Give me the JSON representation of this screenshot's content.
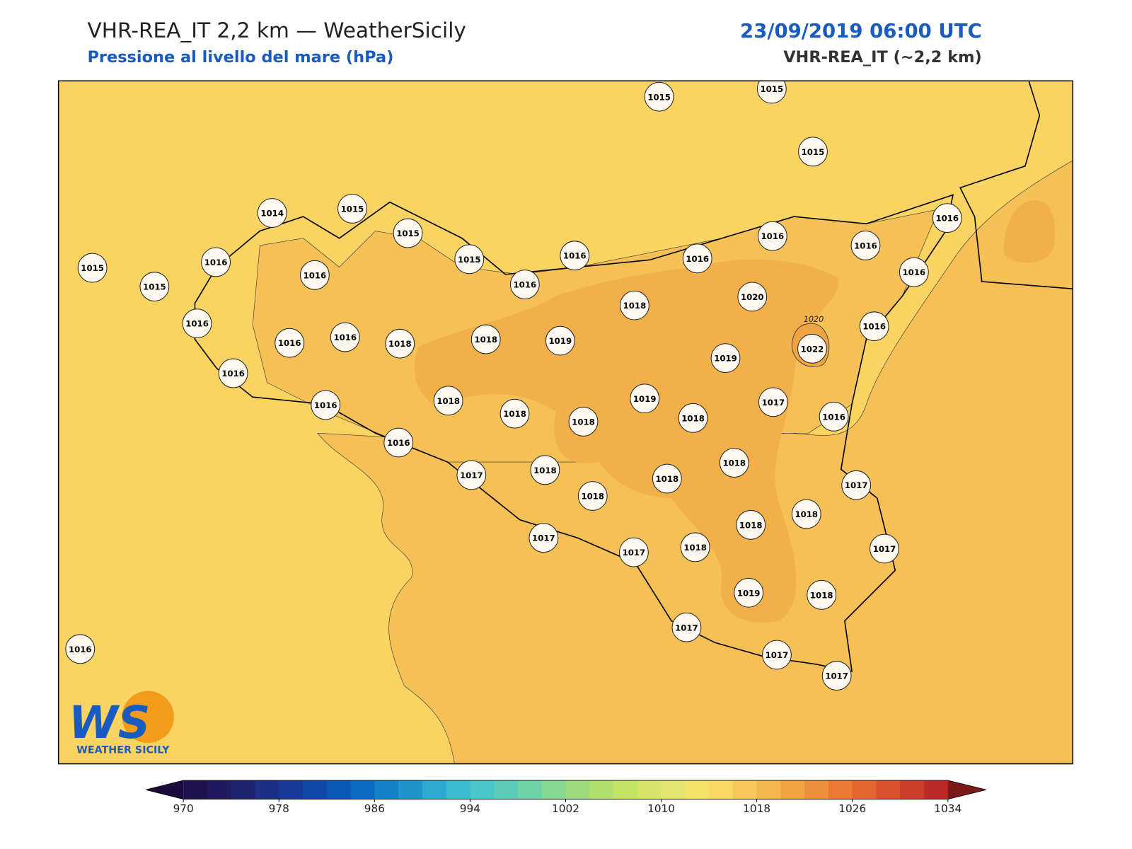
{
  "header": {
    "title": "VHR-REA_IT 2,2 km — WeatherSicily",
    "subtitle": "Pressione al livello del mare (hPa)",
    "date": "23/09/2019 06:00 UTC",
    "model": "VHR-REA_IT (~2,2 km)"
  },
  "map": {
    "stations": [
      1015,
      1015,
      1015,
      1014,
      1015,
      1015,
      1015,
      1016,
      1015,
      1016,
      1015,
      1016,
      1016,
      1016,
      1016,
      1016,
      1016,
      1016,
      1016,
      1016,
      1016,
      1018,
      1018,
      1019,
      1018,
      1020,
      1022,
      1019,
      1016,
      1016,
      1016,
      1018,
      1018,
      1018,
      1019,
      1018,
      1017,
      1016,
      1016,
      1017,
      1018,
      1018,
      1018,
      1018,
      1017,
      1018,
      1018,
      1017,
      1017,
      1018,
      1017,
      1019,
      1018,
      1017,
      1017,
      1017,
      1016
    ],
    "contour_label": "1020",
    "colors": {
      "sea": "#fad463",
      "mid": "#f5c156",
      "high": "#f2b04a",
      "peak": "#eea443"
    }
  },
  "logo": {
    "mark": "WS",
    "text": "WEATHER SICILY"
  },
  "colorbar": {
    "min": 970,
    "max": 1034,
    "step": 2,
    "ticks": [
      970,
      978,
      986,
      994,
      1002,
      1010,
      1018,
      1026,
      1034
    ],
    "colors": [
      "#1e1150",
      "#211a5e",
      "#1f2470",
      "#1c2f85",
      "#173a97",
      "#1147a8",
      "#0b57b6",
      "#0a6bc2",
      "#1480c8",
      "#2194cc",
      "#2ea8d0",
      "#3cbad0",
      "#4ac5c8",
      "#5bcdba",
      "#70d3a8",
      "#86d893",
      "#9bdc80",
      "#b1e06e",
      "#c6e463",
      "#d7e66a",
      "#e4e56f",
      "#f2e26a",
      "#fbd866",
      "#f9c85c",
      "#f5b54f",
      "#f1a444",
      "#ee903b",
      "#ea7a34",
      "#e3652f",
      "#d9512c",
      "#cc3d2a",
      "#bb2a26"
    ],
    "under": "#1a0a3e",
    "over": "#7a1a1a"
  }
}
